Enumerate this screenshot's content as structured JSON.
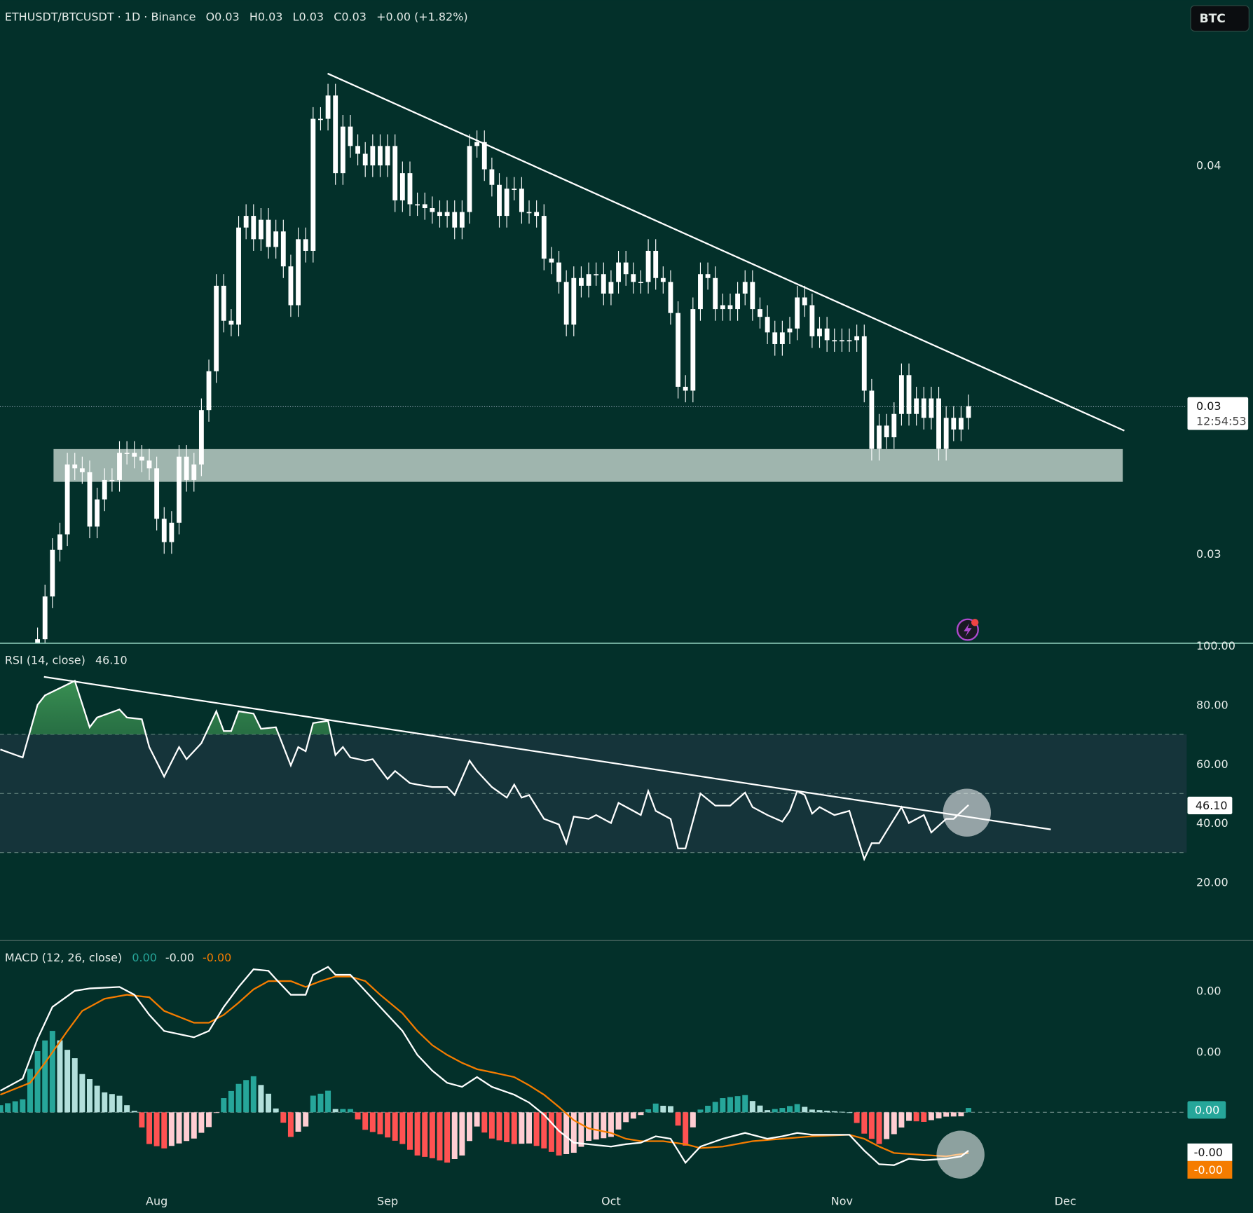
{
  "header": {
    "symbol": "ETHUSDT/BTCUSDT · 1D · Binance",
    "open": "O0.03",
    "high": "H0.03",
    "low": "L0.03",
    "close": "C0.03",
    "change": "+0.00 (+1.82%)",
    "currency_button": "BTC"
  },
  "colors": {
    "background": "#03302a",
    "candle": "#ffffff",
    "rsi_band": "#15343a",
    "macd_line": "#ffffff",
    "signal_line": "#f57c00",
    "hist_up_strong": "#26a69a",
    "hist_up_weak": "#b2dfdb",
    "hist_down_strong": "#ff5252",
    "hist_down_weak": "#ffcdd2",
    "zone": "#9fb5ae"
  },
  "chart_data": [
    {
      "type": "candlestick",
      "pane": "price",
      "first_date": "Jul 16",
      "closes": [
        0.0278,
        0.0289,
        0.0301,
        0.0305,
        0.0323,
        0.0322,
        0.0321,
        0.0307,
        0.0314,
        0.0319,
        0.0319,
        0.0326,
        0.0326,
        0.0325,
        0.0324,
        0.0322,
        0.0309,
        0.0303,
        0.0308,
        0.0325,
        0.0319,
        0.0323,
        0.0337,
        0.0347,
        0.0369,
        0.036,
        0.0359,
        0.0384,
        0.0387,
        0.0381,
        0.0386,
        0.0379,
        0.0383,
        0.0374,
        0.0364,
        0.0381,
        0.0378,
        0.0412,
        0.0412,
        0.0418,
        0.0398,
        0.041,
        0.0405,
        0.0403,
        0.04,
        0.0405,
        0.04,
        0.0405,
        0.0391,
        0.0398,
        0.039,
        0.039,
        0.0389,
        0.0388,
        0.0387,
        0.0388,
        0.0384,
        0.0388,
        0.0405,
        0.0406,
        0.0399,
        0.0395,
        0.0387,
        0.0394,
        0.0394,
        0.0388,
        0.0388,
        0.0387,
        0.0376,
        0.0375,
        0.037,
        0.0359,
        0.0371,
        0.0369,
        0.0372,
        0.0372,
        0.0367,
        0.037,
        0.0375,
        0.0372,
        0.037,
        0.037,
        0.0378,
        0.0371,
        0.037,
        0.0362,
        0.0343,
        0.0342,
        0.0363,
        0.0372,
        0.0371,
        0.0363,
        0.0364,
        0.0363,
        0.0367,
        0.037,
        0.0363,
        0.0361,
        0.0357,
        0.0354,
        0.0357,
        0.0358,
        0.0366,
        0.0364,
        0.0356,
        0.0358,
        0.0355,
        0.0355,
        0.0355,
        0.0355,
        0.0356,
        0.0342,
        0.0327,
        0.0333,
        0.033,
        0.0336,
        0.0346,
        0.0336,
        0.034,
        0.0335,
        0.034,
        0.0327,
        0.0335,
        0.0332,
        0.0335,
        0.0338
      ],
      "y_ticks": [
        {
          "value": 0.04,
          "label": "0.04"
        },
        {
          "value": 0.03,
          "label": "0.03"
        }
      ],
      "last_price_label": "0.03",
      "countdown": "12:54:53"
    },
    {
      "type": "line",
      "pane": "rsi",
      "title": "RSI (14, close)",
      "value_label": "46.10",
      "ylim": [
        0,
        100
      ],
      "levels": [
        70,
        50,
        30
      ],
      "y_ticks": [
        {
          "value": 100,
          "label": "100.00"
        },
        {
          "value": 80,
          "label": "80.00"
        },
        {
          "value": 60,
          "label": "60.00"
        },
        {
          "value": 40,
          "label": "40.00"
        },
        {
          "value": 20,
          "label": "20.00"
        }
      ],
      "points": [
        [
          "Jul 11",
          64.9
        ],
        [
          "Jul 14",
          62.2
        ],
        [
          "Jul 16",
          80
        ],
        [
          "Jul 17",
          83.2
        ],
        [
          "Jul 21",
          88.1
        ],
        [
          "Jul 23",
          72.4
        ],
        [
          "Jul 24",
          75.7
        ],
        [
          "Jul 27",
          78.4
        ],
        [
          "Jul 28",
          75.7
        ],
        [
          "Jul 30",
          75.1
        ],
        [
          "Jul 31",
          65.7
        ],
        [
          "Aug 2",
          55.7
        ],
        [
          "Aug 4",
          65.7
        ],
        [
          "Aug 5",
          61.6
        ],
        [
          "Aug 7",
          67
        ],
        [
          "Aug 9",
          77.8
        ],
        [
          "Aug 10",
          71.1
        ],
        [
          "Aug 11",
          71.1
        ],
        [
          "Aug 12",
          77.8
        ],
        [
          "Aug 14",
          77
        ],
        [
          "Aug 15",
          71.9
        ],
        [
          "Aug 17",
          72.4
        ],
        [
          "Aug 19",
          59.5
        ],
        [
          "Aug 20",
          65.7
        ],
        [
          "Aug 21",
          64.3
        ],
        [
          "Aug 22",
          73.8
        ],
        [
          "Aug 24",
          74.6
        ],
        [
          "Aug 25",
          63
        ],
        [
          "Aug 26",
          65.7
        ],
        [
          "Aug 27",
          62.2
        ],
        [
          "Aug 29",
          61.1
        ],
        [
          "Aug 30",
          61.6
        ],
        [
          "Sep 1",
          54.9
        ],
        [
          "Sep 2",
          57.6
        ],
        [
          "Sep 4",
          53.5
        ],
        [
          "Sep 5",
          53
        ],
        [
          "Sep 7",
          52.2
        ],
        [
          "Sep 9",
          52.2
        ],
        [
          "Sep 10",
          49.5
        ],
        [
          "Sep 12",
          61.1
        ],
        [
          "Sep 13",
          57.6
        ],
        [
          "Sep 15",
          52.2
        ],
        [
          "Sep 17",
          48.6
        ],
        [
          "Sep 18",
          53
        ],
        [
          "Sep 19",
          48.6
        ],
        [
          "Sep 20",
          49.5
        ],
        [
          "Sep 22",
          41.4
        ],
        [
          "Sep 24",
          39.5
        ],
        [
          "Sep 25",
          33.2
        ],
        [
          "Sep 26",
          42.2
        ],
        [
          "Sep 28",
          41.4
        ],
        [
          "Sep 29",
          42.7
        ],
        [
          "Oct 1",
          40
        ],
        [
          "Oct 2",
          46.8
        ],
        [
          "Oct 4",
          44.1
        ],
        [
          "Oct 5",
          42.7
        ],
        [
          "Oct 6",
          50.8
        ],
        [
          "Oct 7",
          44.1
        ],
        [
          "Oct 9",
          41.4
        ],
        [
          "Oct 10",
          31.4
        ],
        [
          "Oct 11",
          31.4
        ],
        [
          "Oct 13",
          50
        ],
        [
          "Oct 15",
          45.9
        ],
        [
          "Oct 17",
          45.9
        ],
        [
          "Oct 19",
          50.3
        ],
        [
          "Oct 20",
          45.4
        ],
        [
          "Oct 22",
          42.7
        ],
        [
          "Oct 24",
          40.5
        ],
        [
          "Oct 25",
          44.1
        ],
        [
          "Oct 26",
          50.8
        ],
        [
          "Oct 27",
          49.5
        ],
        [
          "Oct 28",
          43.2
        ],
        [
          "Oct 29",
          45.4
        ],
        [
          "Oct 31",
          42.7
        ],
        [
          "Nov 2",
          44.1
        ],
        [
          "Nov 3",
          35.9
        ],
        [
          "Nov 4",
          27.8
        ],
        [
          "Nov 5",
          33.2
        ],
        [
          "Nov 6",
          33.2
        ],
        [
          "Nov 7",
          37.3
        ],
        [
          "Nov 9",
          45.4
        ],
        [
          "Nov 10",
          40
        ],
        [
          "Nov 12",
          42.7
        ],
        [
          "Nov 13",
          36.8
        ],
        [
          "Nov 15",
          41.4
        ],
        [
          "Nov 16",
          41.4
        ],
        [
          "Nov 18",
          46.1
        ]
      ]
    },
    {
      "type": "line",
      "pane": "macd",
      "title": "MACD (12, 26, close)",
      "values_labels": {
        "histogram": "0.00",
        "macd": "-0.00",
        "signal": "-0.00"
      },
      "y_ticks": [
        {
          "value": 0.0004,
          "label": "0.00"
        },
        {
          "value": 0.0002,
          "label": "0.00"
        }
      ],
      "tags": {
        "histogram": "0.00",
        "macd": "-0.00",
        "signal": "-0.00"
      },
      "series": [
        {
          "role": "macd",
          "points": [
            [
              "Jul 11",
              7.1e-05
            ],
            [
              "Jul 14",
              0.000111
            ],
            [
              "Jul 16",
              0.000242
            ],
            [
              "Jul 18",
              0.000347
            ],
            [
              "Jul 21",
              0.0004
            ],
            [
              "Jul 23",
              0.000408
            ],
            [
              "Jul 27",
              0.000413
            ],
            [
              "Jul 29",
              0.000387
            ],
            [
              "Jul 31",
              0.000321
            ],
            [
              "Aug 2",
              0.000268
            ],
            [
              "Aug 6",
              0.000247
            ],
            [
              "Aug 8",
              0.000268
            ],
            [
              "Aug 10",
              0.000347
            ],
            [
              "Aug 12",
              0.000413
            ],
            [
              "Aug 14",
              0.000471
            ],
            [
              "Aug 16",
              0.000466
            ],
            [
              "Aug 17",
              0.000439
            ],
            [
              "Aug 19",
              0.000387
            ],
            [
              "Aug 21",
              0.000387
            ],
            [
              "Aug 22",
              0.000453
            ],
            [
              "Aug 24",
              0.000479
            ],
            [
              "Aug 25",
              0.000453
            ],
            [
              "Aug 27",
              0.000453
            ],
            [
              "Aug 29",
              0.0004
            ],
            [
              "Aug 31",
              0.000347
            ],
            [
              "Sep 3",
              0.000268
            ],
            [
              "Sep 5",
              0.000189
            ],
            [
              "Sep 7",
              0.000137
            ],
            [
              "Sep 9",
              9.7e-05
            ],
            [
              "Sep 11",
              8.4e-05
            ],
            [
              "Sep 13",
              0.000116
            ],
            [
              "Sep 15",
              8.4e-05
            ],
            [
              "Sep 18",
              5.8e-05
            ],
            [
              "Sep 20",
              3.2e-05
            ],
            [
              "Sep 22",
              -8e-06
            ],
            [
              "Sep 24",
              -6.1e-05
            ],
            [
              "Sep 26",
              -0.0001
            ],
            [
              "Oct 1",
              -0.000113
            ],
            [
              "Oct 3",
              -0.000105
            ],
            [
              "Oct 5",
              -0.0001
            ],
            [
              "Oct 7",
              -7.9e-05
            ],
            [
              "Oct 9",
              -8.7e-05
            ],
            [
              "Oct 10",
              -0.000126
            ],
            [
              "Oct 11",
              -0.000166
            ],
            [
              "Oct 12",
              -0.000139
            ],
            [
              "Oct 13",
              -0.000113
            ],
            [
              "Oct 16",
              -8.7e-05
            ],
            [
              "Oct 19",
              -6.8e-05
            ],
            [
              "Oct 22",
              -8.7e-05
            ],
            [
              "Oct 24",
              -7.9e-05
            ],
            [
              "Oct 26",
              -6.8e-05
            ],
            [
              "Oct 28",
              -7.4e-05
            ],
            [
              "Oct 31",
              -7.4e-05
            ],
            [
              "Nov 2",
              -7.4e-05
            ],
            [
              "Nov 4",
              -0.000126
            ],
            [
              "Nov 6",
              -0.000171
            ],
            [
              "Nov 8",
              -0.000174
            ],
            [
              "Nov 10",
              -0.000153
            ],
            [
              "Nov 12",
              -0.000158
            ],
            [
              "Nov 15",
              -0.000153
            ],
            [
              "Nov 17",
              -0.000145
            ],
            [
              "Nov 18",
              -0.000126
            ]
          ]
        },
        {
          "role": "signal",
          "points": [
            [
              "Jul 11",
              5.8e-05
            ],
            [
              "Jul 15",
              9.7e-05
            ],
            [
              "Jul 17",
              0.000163
            ],
            [
              "Jul 20",
              0.000268
            ],
            [
              "Jul 22",
              0.000334
            ],
            [
              "Jul 25",
              0.000374
            ],
            [
              "Jul 28",
              0.000387
            ],
            [
              "Jul 31",
              0.000379
            ],
            [
              "Aug 2",
              0.000334
            ],
            [
              "Aug 6",
              0.000295
            ],
            [
              "Aug 8",
              0.000295
            ],
            [
              "Aug 10",
              0.000321
            ],
            [
              "Aug 12",
              0.000361
            ],
            [
              "Aug 14",
              0.000405
            ],
            [
              "Aug 16",
              0.000432
            ],
            [
              "Aug 19",
              0.000432
            ],
            [
              "Aug 21",
              0.000413
            ],
            [
              "Aug 23",
              0.000432
            ],
            [
              "Aug 25",
              0.000447
            ],
            [
              "Aug 27",
              0.000447
            ],
            [
              "Aug 29",
              0.000432
            ],
            [
              "Aug 31",
              0.000387
            ],
            [
              "Sep 3",
              0.000326
            ],
            [
              "Sep 5",
              0.000268
            ],
            [
              "Sep 7",
              0.000221
            ],
            [
              "Sep 9",
              0.000189
            ],
            [
              "Sep 11",
              0.000163
            ],
            [
              "Sep 13",
              0.000142
            ],
            [
              "Sep 15",
              0.000132
            ],
            [
              "Sep 18",
              0.000116
            ],
            [
              "Sep 20",
              8.9e-05
            ],
            [
              "Sep 22",
              5.8e-05
            ],
            [
              "Sep 24",
              1.8e-05
            ],
            [
              "Sep 26",
              -2.6e-05
            ],
            [
              "Sep 28",
              -5.3e-05
            ],
            [
              "Oct 1",
              -6.8e-05
            ],
            [
              "Oct 3",
              -8.7e-05
            ],
            [
              "Oct 5",
              -9.5e-05
            ],
            [
              "Oct 8",
              -9.5e-05
            ],
            [
              "Oct 11",
              -0.000105
            ],
            [
              "Oct 13",
              -0.000118
            ],
            [
              "Oct 16",
              -0.000113
            ],
            [
              "Oct 20",
              -9.5e-05
            ],
            [
              "Oct 24",
              -8.7e-05
            ],
            [
              "Oct 28",
              -7.9e-05
            ],
            [
              "Nov 2",
              -7.4e-05
            ],
            [
              "Nov 4",
              -8.7e-05
            ],
            [
              "Nov 6",
              -0.000113
            ],
            [
              "Nov 8",
              -0.000134
            ],
            [
              "Nov 11",
              -0.000139
            ],
            [
              "Nov 15",
              -0.000145
            ],
            [
              "Nov 18",
              -0.000134
            ]
          ]
        }
      ]
    }
  ],
  "time_axis": {
    "ticks": [
      {
        "date": "Aug 1",
        "label": "Aug"
      },
      {
        "date": "Sep 1",
        "label": "Sep"
      },
      {
        "date": "Oct 1",
        "label": "Oct"
      },
      {
        "date": "Nov 1",
        "label": "Nov"
      },
      {
        "date": "Dec 1",
        "label": "Dec"
      }
    ]
  },
  "icons": {
    "alert": "lightning-alert-icon"
  }
}
